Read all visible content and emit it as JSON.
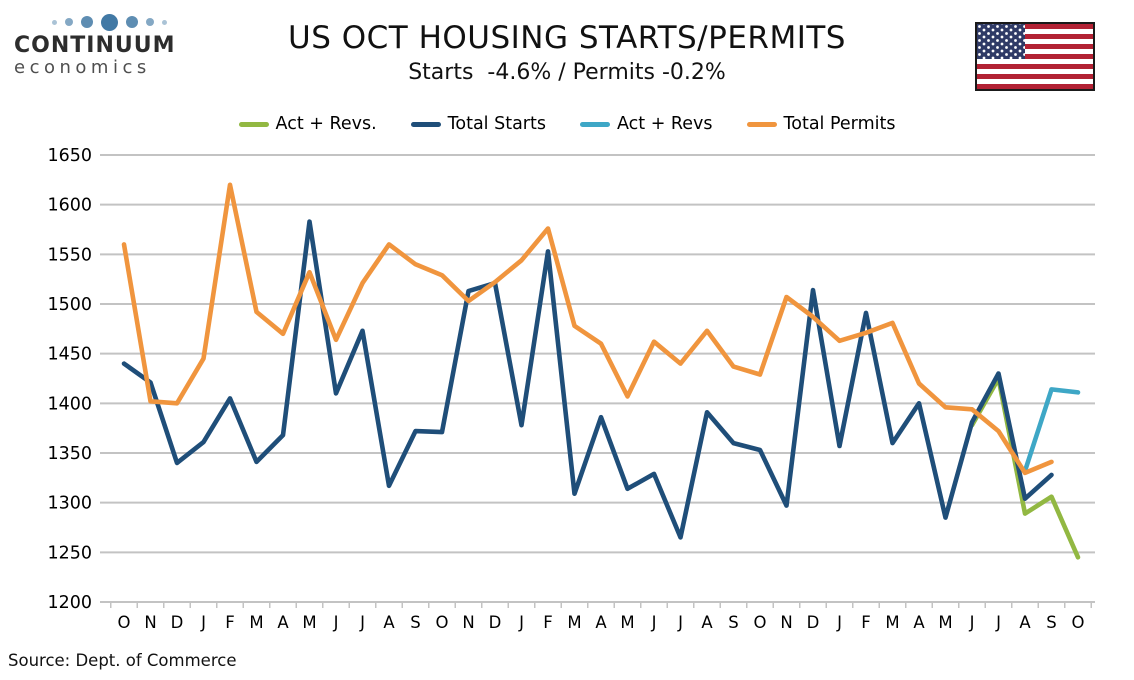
{
  "header": {
    "logo": {
      "brand": "CONTINUUM",
      "sub": "economics",
      "dot_color": "#4279A5"
    },
    "title": "US OCT HOUSING STARTS/PERMITS",
    "subtitle": "Starts  -4.6% / Permits -0.2%",
    "flag": {
      "country": "United States",
      "red": "#B22234",
      "blue": "#2F3A66"
    }
  },
  "source": "Source: Dept. of Commerce",
  "colors": {
    "grid": "#C3C3C3",
    "axis_text": "#000000"
  },
  "chart_data": {
    "type": "line",
    "title": "US OCT HOUSING STARTS/PERMITS",
    "subtitle": "Starts  -4.6% / Permits -0.2%",
    "xlabel": "",
    "ylabel": "",
    "ylim": [
      1200,
      1650
    ],
    "ytick_step": 50,
    "grid": true,
    "legend_position": "top",
    "categories": [
      "O",
      "N",
      "D",
      "J",
      "F",
      "M",
      "A",
      "M",
      "J",
      "J",
      "A",
      "S",
      "O",
      "N",
      "D",
      "J",
      "F",
      "M",
      "A",
      "M",
      "J",
      "J",
      "A",
      "S",
      "O",
      "N",
      "D",
      "J",
      "F",
      "M",
      "A",
      "M",
      "J",
      "J",
      "A",
      "S",
      "O"
    ],
    "series": [
      {
        "name": "Act + Revs.",
        "color": "#92B842",
        "values": [
          null,
          null,
          null,
          null,
          null,
          null,
          null,
          null,
          null,
          null,
          null,
          null,
          null,
          null,
          null,
          null,
          null,
          null,
          null,
          null,
          null,
          null,
          null,
          null,
          null,
          null,
          null,
          null,
          null,
          null,
          null,
          null,
          1378,
          1425,
          1289,
          1306,
          1245
        ]
      },
      {
        "name": "Total Starts",
        "color": "#1F4E79",
        "values": [
          1440,
          1421,
          1340,
          1361,
          1405,
          1341,
          1368,
          1583,
          1410,
          1473,
          1317,
          1372,
          1371,
          1513,
          1521,
          1378,
          1553,
          1309,
          1386,
          1314,
          1329,
          1265,
          1391,
          1360,
          1353,
          1297,
          1514,
          1357,
          1491,
          1360,
          1400,
          1285,
          1381,
          1430,
          1304,
          1328,
          null
        ]
      },
      {
        "name": "Act + Revs",
        "color": "#3EA7C6",
        "values": [
          null,
          null,
          null,
          null,
          null,
          null,
          null,
          null,
          null,
          null,
          null,
          null,
          null,
          null,
          null,
          null,
          null,
          null,
          null,
          null,
          null,
          null,
          null,
          null,
          null,
          null,
          null,
          null,
          null,
          null,
          null,
          null,
          null,
          null,
          1332,
          1414,
          1411
        ]
      },
      {
        "name": "Total Permits",
        "color": "#F0953E",
        "values": [
          1560,
          1402,
          1400,
          1445,
          1620,
          1492,
          1470,
          1532,
          1464,
          1521,
          1560,
          1540,
          1529,
          1503,
          1522,
          1544,
          1576,
          1478,
          1460,
          1407,
          1462,
          1440,
          1473,
          1437,
          1429,
          1507,
          1487,
          1463,
          1471,
          1481,
          1420,
          1396,
          1394,
          1372,
          1330,
          1341,
          null
        ]
      }
    ]
  }
}
